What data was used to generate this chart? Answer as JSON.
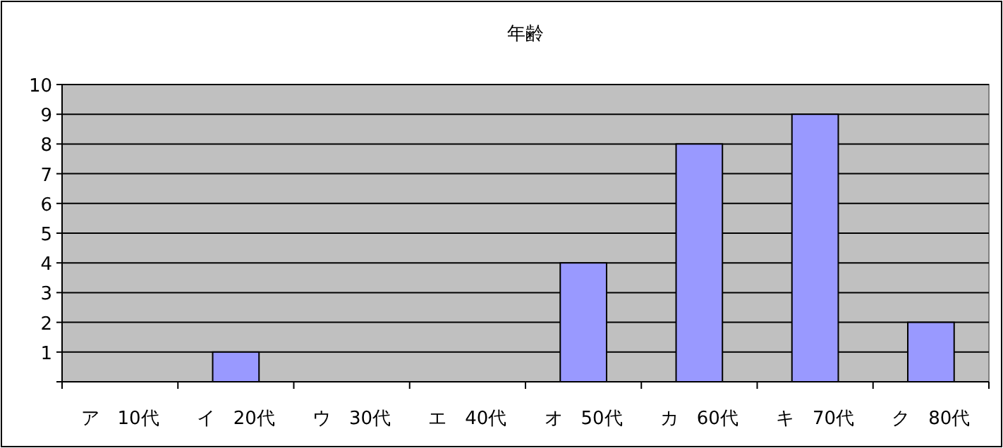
{
  "chart_data": {
    "type": "bar",
    "title": "年齢",
    "categories": [
      "ア　10代",
      "イ　20代",
      "ウ　30代",
      "エ　40代",
      "オ　50代",
      "カ　60代",
      "キ　70代",
      "ク　80代"
    ],
    "values": [
      0,
      1,
      0,
      0,
      4,
      8,
      9,
      2
    ],
    "color": "#9999ff",
    "ylim": [
      0,
      10
    ],
    "yticks": [
      {
        "value": 0,
        "label": null
      },
      1,
      2,
      3,
      4,
      5,
      6,
      7,
      8,
      9,
      10
    ],
    "grid": "y"
  }
}
